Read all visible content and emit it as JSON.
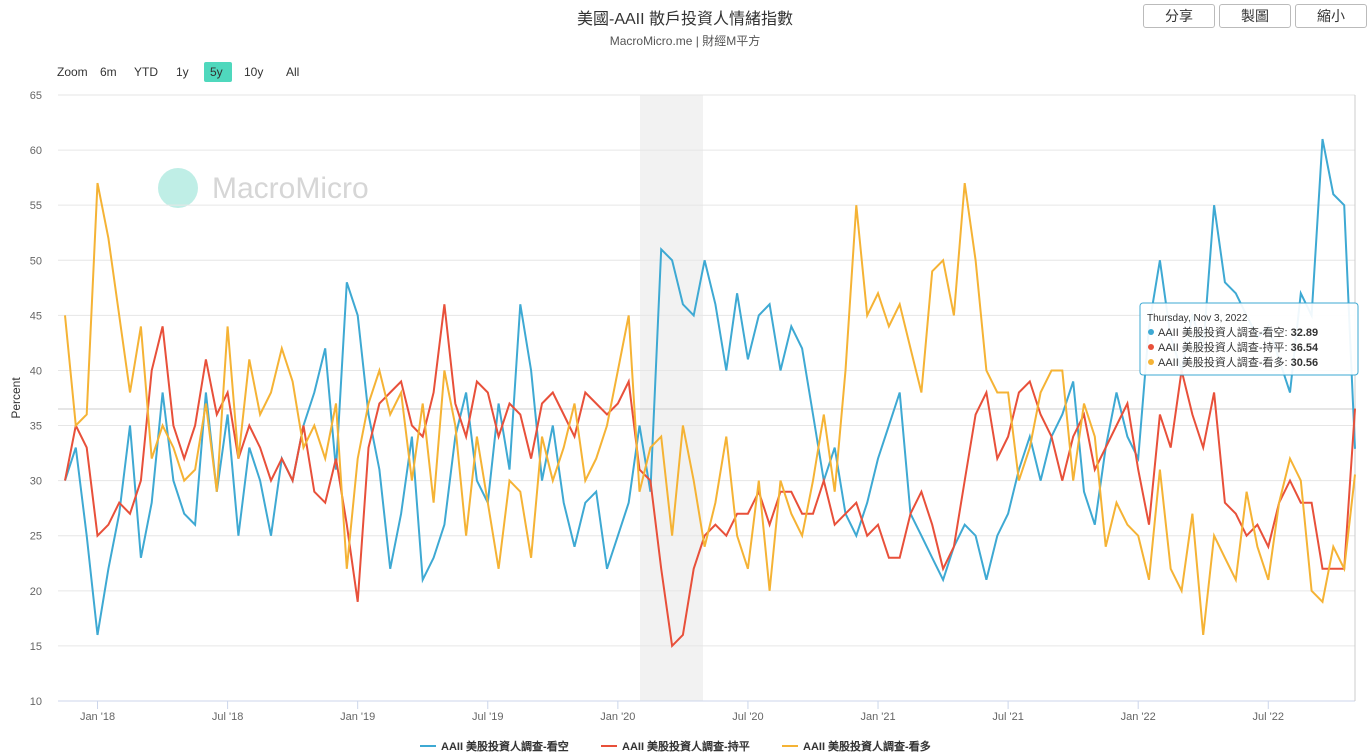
{
  "toolbar": {
    "buttons": [
      "分享",
      "製圖",
      "縮小"
    ]
  },
  "chart_data": {
    "type": "line",
    "title": "美國-AAII 散戶投資人情緒指數",
    "subtitle": "MacroMicro.me | 財經M平方",
    "watermark": "MacroMicro",
    "y_label": "Percent",
    "zoom": {
      "label": "Zoom",
      "options": [
        "6m",
        "YTD",
        "1y",
        "5y",
        "10y",
        "All"
      ],
      "active": "5y"
    },
    "categories": [
      null,
      null,
      null,
      "Jan '18",
      null,
      null,
      null,
      null,
      null,
      null,
      null,
      null,
      null,
      null,
      null,
      "Jul '18",
      null,
      null,
      null,
      null,
      null,
      null,
      null,
      null,
      null,
      null,
      null,
      "Jan '19",
      null,
      null,
      null,
      null,
      null,
      null,
      null,
      null,
      null,
      null,
      null,
      "Jul '19",
      null,
      null,
      null,
      null,
      null,
      null,
      null,
      null,
      null,
      null,
      null,
      "Jan '20",
      null,
      null,
      null,
      null,
      null,
      null,
      null,
      null,
      null,
      null,
      null,
      "Jul '20",
      null,
      null,
      null,
      null,
      null,
      null,
      null,
      null,
      null,
      null,
      null,
      "Jan '21",
      null,
      null,
      null,
      null,
      null,
      null,
      null,
      null,
      null,
      null,
      null,
      "Jul '21",
      null,
      null,
      null,
      null,
      null,
      null,
      null,
      null,
      null,
      null,
      null,
      "Jan '22",
      null,
      null,
      null,
      null,
      null,
      null,
      null,
      null,
      null,
      null,
      null,
      "Jul '22",
      null,
      null,
      null,
      null,
      null,
      null,
      null,
      null
    ],
    "series": [
      {
        "name": "AAII 美股投資人調查-看空",
        "color": "#3ea9d3",
        "values": [
          30,
          33,
          25,
          16,
          22,
          27,
          35,
          23,
          28,
          38,
          30,
          27,
          26,
          38,
          29,
          36,
          25,
          33,
          30,
          25,
          32,
          30,
          35,
          38,
          42,
          31,
          48,
          45,
          36,
          31,
          22,
          27,
          34,
          21,
          23,
          26,
          34,
          38,
          30,
          28,
          37,
          31,
          46,
          40,
          30,
          35,
          28,
          24,
          28,
          29,
          22,
          25,
          28,
          35,
          29,
          51,
          50,
          46,
          45,
          50,
          46,
          40,
          47,
          41,
          45,
          46,
          40,
          44,
          42,
          36,
          30,
          33,
          27,
          25,
          28,
          32,
          35,
          38,
          27,
          25,
          23,
          21,
          24,
          26,
          25,
          21,
          25,
          27,
          31,
          34,
          30,
          34,
          36,
          39,
          29,
          26,
          33,
          38,
          34,
          32,
          44,
          50,
          43,
          40,
          45,
          42,
          55,
          48,
          47,
          45,
          43,
          44,
          41,
          38,
          47,
          45,
          61,
          56,
          55,
          32.89
        ]
      },
      {
        "name": "AAII 美股投資人調查-持平",
        "color": "#e8503a",
        "values": [
          30,
          35,
          33,
          25,
          26,
          28,
          27,
          30,
          40,
          44,
          35,
          32,
          35,
          41,
          36,
          38,
          32,
          35,
          33,
          30,
          32,
          30,
          35,
          29,
          28,
          32,
          26,
          19,
          33,
          37,
          38,
          39,
          35,
          34,
          38,
          46,
          37,
          34,
          39,
          38,
          34,
          37,
          36,
          32,
          37,
          38,
          36,
          34,
          38,
          37,
          36,
          37,
          39,
          31,
          30,
          22,
          15,
          16,
          22,
          25,
          26,
          25,
          27,
          27,
          29,
          26,
          29,
          29,
          27,
          27,
          30,
          26,
          27,
          28,
          25,
          26,
          23,
          23,
          27,
          29,
          26,
          22,
          24,
          30,
          36,
          38,
          32,
          34,
          38,
          39,
          36,
          34,
          30,
          34,
          36,
          31,
          33,
          35,
          37,
          31,
          26,
          36,
          33,
          40,
          36,
          33,
          38,
          28,
          27,
          25,
          26,
          24,
          28,
          30,
          28,
          28,
          22,
          22,
          22,
          36.54
        ]
      },
      {
        "name": "AAII 美股投資人調查-看多",
        "color": "#f5b335",
        "values": [
          45,
          35,
          36,
          57,
          52,
          45,
          38,
          44,
          32,
          35,
          33,
          30,
          31,
          37,
          29,
          44,
          32,
          41,
          36,
          38,
          42,
          39,
          33,
          35,
          32,
          37,
          22,
          32,
          37,
          40,
          36,
          38,
          30,
          37,
          28,
          40,
          35,
          25,
          34,
          28,
          22,
          30,
          29,
          23,
          34,
          30,
          33,
          37,
          30,
          32,
          35,
          40,
          45,
          29,
          33,
          34,
          25,
          35,
          30,
          24,
          28,
          34,
          25,
          22,
          30,
          20,
          30,
          27,
          25,
          30,
          36,
          29,
          40,
          55,
          45,
          47,
          44,
          46,
          42,
          38,
          49,
          50,
          45,
          57,
          50,
          40,
          38,
          38,
          30,
          33,
          38,
          40,
          40,
          30,
          37,
          34,
          24,
          28,
          26,
          25,
          21,
          31,
          22,
          20,
          27,
          16,
          25,
          23,
          21,
          29,
          24,
          21,
          28,
          32,
          30,
          20,
          19,
          24,
          22,
          30.56
        ]
      }
    ],
    "ylim": [
      10,
      65
    ],
    "yticks": [
      10,
      15,
      20,
      25,
      30,
      35,
      40,
      45,
      50,
      55,
      60,
      65
    ],
    "grid": true,
    "tooltip": {
      "title": "Thursday, Nov 3, 2022"
    }
  }
}
